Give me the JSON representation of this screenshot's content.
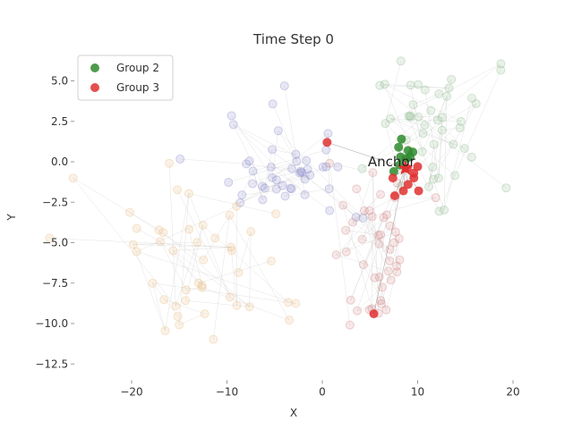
{
  "chart_data": {
    "type": "scatter",
    "title": "Time Step 0",
    "xlabel": "X",
    "ylabel": "Y",
    "xlim": [
      -26,
      23
    ],
    "ylim": [
      -13.5,
      6.8
    ],
    "xticks": [
      -20,
      -10,
      0,
      10,
      20
    ],
    "yticks": [
      -12.5,
      -10.0,
      -7.5,
      -5.0,
      -2.5,
      0.0,
      2.5,
      5.0
    ],
    "xtick_labels": [
      "−20",
      "−10",
      "0",
      "10",
      "20"
    ],
    "ytick_labels": [
      "−12.5",
      "−10.0",
      "−7.5",
      "−5.0",
      "−2.5",
      "0.0",
      "2.5",
      "5.0"
    ],
    "grid": false,
    "legend_position": "top-left",
    "annotation": {
      "text": "Anchor",
      "x": 5.9,
      "y": 0.0
    },
    "anchor_point": {
      "x": 8.7,
      "y": -0.4
    },
    "series": [
      {
        "name": "Group 2",
        "color": "#2e8b2e",
        "points": [
          [
            8.0,
            0.9
          ],
          [
            8.3,
            1.4
          ],
          [
            9.0,
            0.7
          ],
          [
            9.5,
            0.6
          ],
          [
            8.2,
            0.3
          ],
          [
            8.8,
            0.2
          ],
          [
            9.2,
            0.3
          ],
          [
            7.5,
            -0.6
          ],
          [
            8.1,
            -0.2
          ]
        ]
      },
      {
        "name": "Group 3",
        "color": "#e03030",
        "points": [
          [
            0.5,
            1.2
          ],
          [
            10.0,
            -0.3
          ],
          [
            9.6,
            -1.0
          ],
          [
            7.4,
            -1.0
          ],
          [
            9.0,
            -1.4
          ],
          [
            8.5,
            -1.8
          ],
          [
            10.1,
            -1.8
          ],
          [
            7.6,
            -2.1
          ],
          [
            9.6,
            -0.7
          ],
          [
            8.9,
            -0.4
          ],
          [
            5.4,
            -9.4
          ]
        ]
      }
    ],
    "background_groups": [
      {
        "name": "blue cluster",
        "color": "#8080c8",
        "center": [
          -4.5,
          -0.5
        ]
      },
      {
        "name": "orange trail",
        "color": "#e8b878",
        "center": [
          -14,
          -6
        ]
      },
      {
        "name": "green cluster",
        "color": "#88b888",
        "center": [
          12,
          2
        ]
      },
      {
        "name": "red cluster",
        "color": "#d08080",
        "center": [
          6,
          -5
        ]
      }
    ]
  },
  "legend": [
    {
      "label": "Group 2",
      "color": "#2e8b2e"
    },
    {
      "label": "Group 3",
      "color": "#e03030"
    }
  ]
}
